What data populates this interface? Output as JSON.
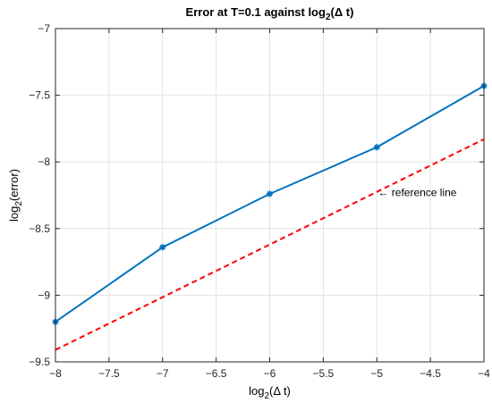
{
  "chart_data": {
    "type": "line",
    "title": {
      "main": "Error at T=0.1 against log",
      "sub": "2",
      "tail": "(Δ t)"
    },
    "xlabel": {
      "main": "log",
      "sub": "2",
      "tail": "(Δ t)"
    },
    "ylabel": {
      "main": "log",
      "sub": "2",
      "tail": "(error)"
    },
    "xlim": [
      -8,
      -4
    ],
    "ylim": [
      -9.5,
      -7
    ],
    "xticks": [
      "-8",
      "-7.5",
      "-7",
      "-6.5",
      "-6",
      "-5.5",
      "-5",
      "-4.5",
      "-4"
    ],
    "yticks": [
      "-9.5",
      "-9",
      "-8.5",
      "-8",
      "-7.5",
      "-7"
    ],
    "grid": true,
    "series": [
      {
        "x": [
          -8,
          -7,
          -6,
          -5,
          -4
        ],
        "y": [
          -9.2,
          -8.64,
          -8.24,
          -7.89,
          -7.43
        ],
        "color": "#0072BD",
        "style": "solid",
        "marker": "asterisk"
      },
      {
        "x": [
          -8,
          -4
        ],
        "y": [
          -9.41,
          -7.83
        ],
        "color": "#FF0000",
        "style": "dashed",
        "marker": "none"
      }
    ],
    "annotations": [
      {
        "text": "← reference line",
        "x": -4.99,
        "y": -8.23
      }
    ]
  }
}
